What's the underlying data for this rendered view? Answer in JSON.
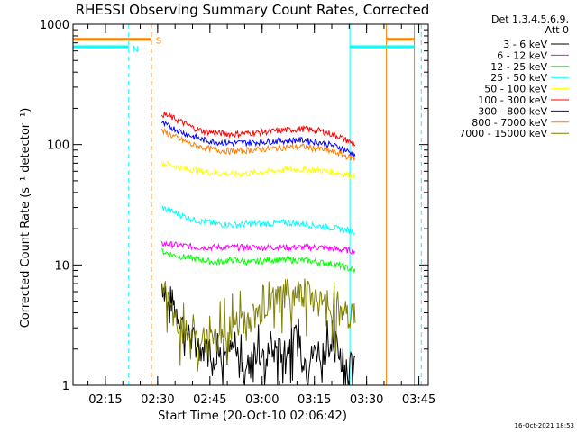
{
  "chart_data": {
    "type": "line",
    "title": "RHESSI Observing Summary Count Rates, Corrected",
    "xlabel": "Start Time (20-Oct-10 02:06:42)",
    "ylabel": "Corrected Count Rate (s⁻¹ detector⁻¹)",
    "yscale": "log",
    "ylim": [
      1,
      1000
    ],
    "xlim_minutes": [
      -1,
      101
    ],
    "x_ticks": [
      {
        "label": "02:15",
        "minute": 8.3
      },
      {
        "label": "02:30",
        "minute": 23.3
      },
      {
        "label": "02:45",
        "minute": 38.3
      },
      {
        "label": "03:00",
        "minute": 53.3
      },
      {
        "label": "03:15",
        "minute": 68.3
      },
      {
        "label": "03:30",
        "minute": 83.3
      },
      {
        "label": "03:45",
        "minute": 98.3
      }
    ],
    "y_ticks": [
      {
        "label": "1",
        "value": 1
      },
      {
        "label": "10",
        "value": 10
      },
      {
        "label": "100",
        "value": 100
      },
      {
        "label": "1000",
        "value": 1000
      }
    ],
    "legend_header": [
      "Det 1,3,4,5,6,9,",
      "Att 0"
    ],
    "legend_position": "right",
    "series": [
      {
        "name": "3 - 6 keV",
        "color": "#000000",
        "x": [
          24.5,
          26,
          27.5,
          29,
          31,
          33,
          36,
          39,
          42,
          45,
          48,
          51,
          54,
          57,
          60,
          63,
          66,
          69,
          72,
          75,
          78,
          80
        ],
        "values": [
          7,
          6,
          5,
          4,
          3,
          2.5,
          2,
          2,
          1.8,
          2,
          1.5,
          2,
          1.5,
          2,
          2,
          2.5,
          1.5,
          2,
          2,
          2,
          1.5,
          1.5
        ]
      },
      {
        "name": "6 - 12 keV",
        "color": "#ff00ff",
        "x": [
          24.5,
          30,
          35,
          40,
          45,
          50,
          55,
          60,
          65,
          70,
          75,
          80
        ],
        "values": [
          15,
          14.5,
          14,
          14,
          14,
          14,
          14,
          14,
          14,
          14,
          13.5,
          13
        ]
      },
      {
        "name": "12 - 25 keV",
        "color": "#00ff00",
        "x": [
          24.5,
          28,
          32,
          36,
          40,
          45,
          50,
          55,
          60,
          65,
          70,
          75,
          80
        ],
        "values": [
          13,
          12,
          11.5,
          11,
          10.5,
          11,
          10.5,
          11,
          11,
          11,
          10.5,
          10,
          9
        ]
      },
      {
        "name": "25 - 50 keV",
        "color": "#00ffff",
        "x": [
          24.5,
          27,
          30,
          33,
          36,
          40,
          45,
          50,
          55,
          60,
          65,
          70,
          75,
          80
        ],
        "values": [
          30,
          28,
          26,
          24,
          23,
          22,
          21.5,
          22,
          22,
          22.5,
          22,
          21,
          20,
          19
        ]
      },
      {
        "name": "50 - 100 keV",
        "color": "#ffff00",
        "x": [
          24.5,
          27,
          30,
          33,
          36,
          40,
          45,
          50,
          55,
          60,
          65,
          70,
          75,
          80
        ],
        "values": [
          70,
          68,
          64,
          62,
          60,
          58,
          57,
          58,
          60,
          62,
          62,
          61,
          58,
          55
        ]
      },
      {
        "name": "100 - 300 keV",
        "color": "#ff0000",
        "x": [
          24.5,
          27,
          30,
          33,
          36,
          40,
          45,
          50,
          55,
          60,
          65,
          70,
          75,
          80
        ],
        "values": [
          180,
          170,
          155,
          140,
          130,
          125,
          122,
          125,
          128,
          132,
          135,
          130,
          118,
          100
        ]
      },
      {
        "name": "300 - 800 keV",
        "color": "#0000ff",
        "x": [
          24.5,
          27,
          30,
          33,
          36,
          40,
          45,
          50,
          55,
          60,
          65,
          70,
          75,
          80
        ],
        "values": [
          150,
          140,
          128,
          118,
          110,
          105,
          103,
          104,
          106,
          108,
          109,
          104,
          96,
          82
        ]
      },
      {
        "name": "800 - 7000 keV",
        "color": "#ff8000",
        "x": [
          24.5,
          27,
          30,
          33,
          36,
          40,
          45,
          50,
          55,
          60,
          65,
          70,
          75,
          80
        ],
        "values": [
          130,
          120,
          110,
          100,
          95,
          90,
          88,
          90,
          92,
          95,
          96,
          92,
          85,
          75
        ]
      },
      {
        "name": "7000 - 15000 keV",
        "color": "#808000",
        "x": [
          24.5,
          26,
          28,
          30,
          33,
          36,
          40,
          44,
          48,
          52,
          56,
          60,
          64,
          68,
          72,
          76,
          80
        ],
        "values": [
          8,
          5,
          4,
          3,
          2.5,
          2.5,
          2.5,
          3,
          3.5,
          4,
          5,
          6,
          6,
          5.5,
          4.5,
          4,
          4
        ]
      }
    ],
    "flags": {
      "S": {
        "label": "S",
        "color": "#ff8000",
        "value": 750,
        "intervals": [
          [
            -1,
            21.5
          ],
          [
            89,
            97
          ]
        ]
      },
      "N": {
        "label": "N",
        "color": "#00ffff",
        "value": 650,
        "intervals": [
          [
            -1,
            15
          ],
          [
            78.5,
            97
          ]
        ]
      }
    },
    "markers": [
      {
        "minute": 15,
        "color": "#00ffff",
        "style": "dashed"
      },
      {
        "minute": 21.5,
        "color": "#ff8000",
        "style": "dashed"
      },
      {
        "minute": 78.5,
        "color": "#00ffff",
        "style": "solid"
      },
      {
        "minute": 89,
        "color": "#ff8000",
        "style": "solid"
      },
      {
        "minute": 97,
        "color": "#ff8000",
        "style": "solid"
      },
      {
        "minute": 99,
        "color": "#00ffff",
        "style": "dashed"
      }
    ],
    "footer": "16-Oct-2021 18:53"
  }
}
